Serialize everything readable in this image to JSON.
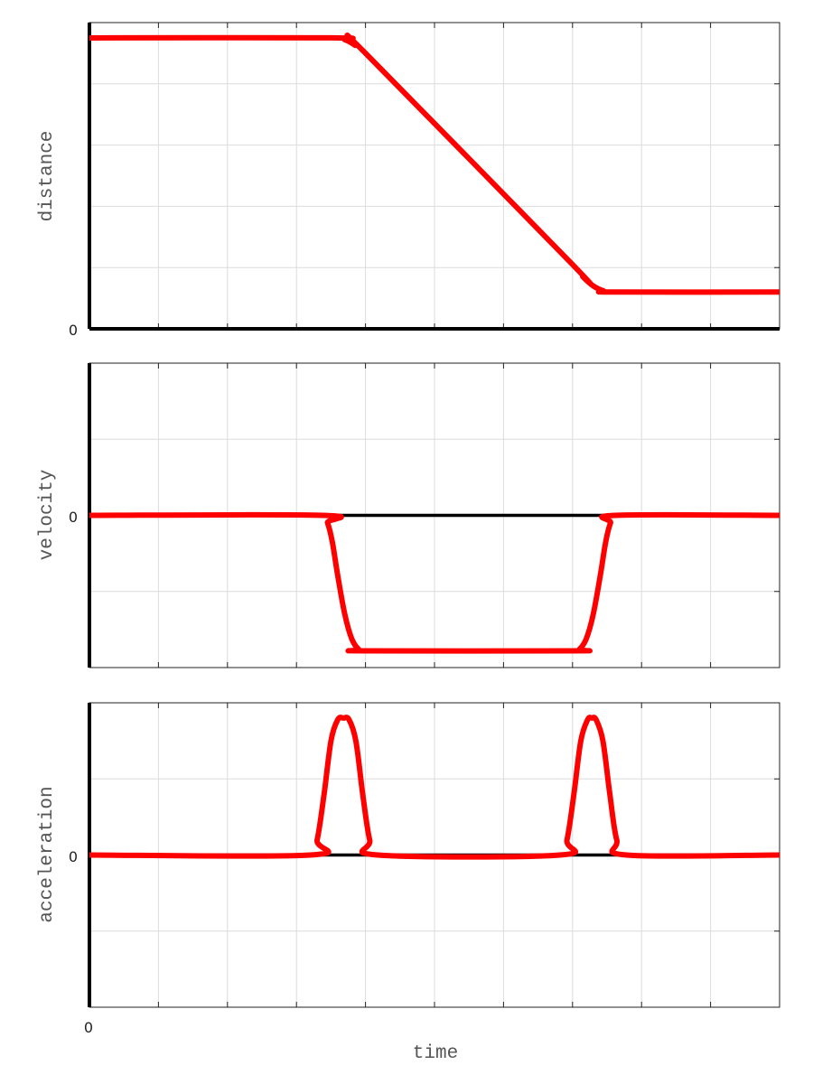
{
  "chart_data": [
    {
      "type": "line",
      "ylabel": "distance",
      "xlabel": "",
      "xlim": [
        0,
        10
      ],
      "ylim": [
        0,
        5
      ],
      "y_tick_labels": [
        "0"
      ],
      "grid": true,
      "line_color": "#ff0000",
      "x": [
        0,
        3.5,
        3.7,
        3.85,
        4.0,
        7.0,
        7.15,
        7.3,
        7.45,
        7.6,
        10
      ],
      "y": [
        4.75,
        4.75,
        4.72,
        4.63,
        4.5,
        1.05,
        0.85,
        0.7,
        0.62,
        0.6,
        0.6
      ]
    },
    {
      "type": "line",
      "ylabel": "velocity",
      "xlabel": "",
      "xlim": [
        0,
        10
      ],
      "ylim": [
        -2,
        2
      ],
      "y_tick_labels": [
        "0"
      ],
      "grid": true,
      "line_color": "#ff0000",
      "x": [
        0,
        3.38,
        3.45,
        3.52,
        3.6,
        3.7,
        3.8,
        3.9,
        4.0,
        7.0,
        7.1,
        7.2,
        7.3,
        7.4,
        7.48,
        7.55,
        7.62,
        10
      ],
      "y": [
        0,
        0,
        -0.1,
        -0.35,
        -0.8,
        -1.3,
        -1.62,
        -1.76,
        -1.78,
        -1.78,
        -1.76,
        -1.62,
        -1.3,
        -0.8,
        -0.35,
        -0.1,
        0,
        0
      ]
    },
    {
      "type": "line",
      "ylabel": "acceleration",
      "xlabel": "time",
      "xlim": [
        0,
        10
      ],
      "ylim": [
        -2,
        2
      ],
      "x_tick_labels": [
        "0"
      ],
      "y_tick_labels": [
        "0"
      ],
      "grid": true,
      "line_color": "#ff0000",
      "x": [
        0,
        3.2,
        3.3,
        3.4,
        3.5,
        3.6,
        3.68,
        3.76,
        3.86,
        3.96,
        4.06,
        4.18,
        6.82,
        6.92,
        7.02,
        7.12,
        7.22,
        7.28,
        7.34,
        7.44,
        7.54,
        7.64,
        7.78,
        10
      ],
      "y": [
        0,
        0,
        0.2,
        0.8,
        1.5,
        1.78,
        1.8,
        1.78,
        1.5,
        0.8,
        0.2,
        0,
        0,
        0.2,
        0.8,
        1.5,
        1.78,
        1.8,
        1.78,
        1.5,
        0.8,
        0.2,
        0,
        0
      ]
    }
  ]
}
